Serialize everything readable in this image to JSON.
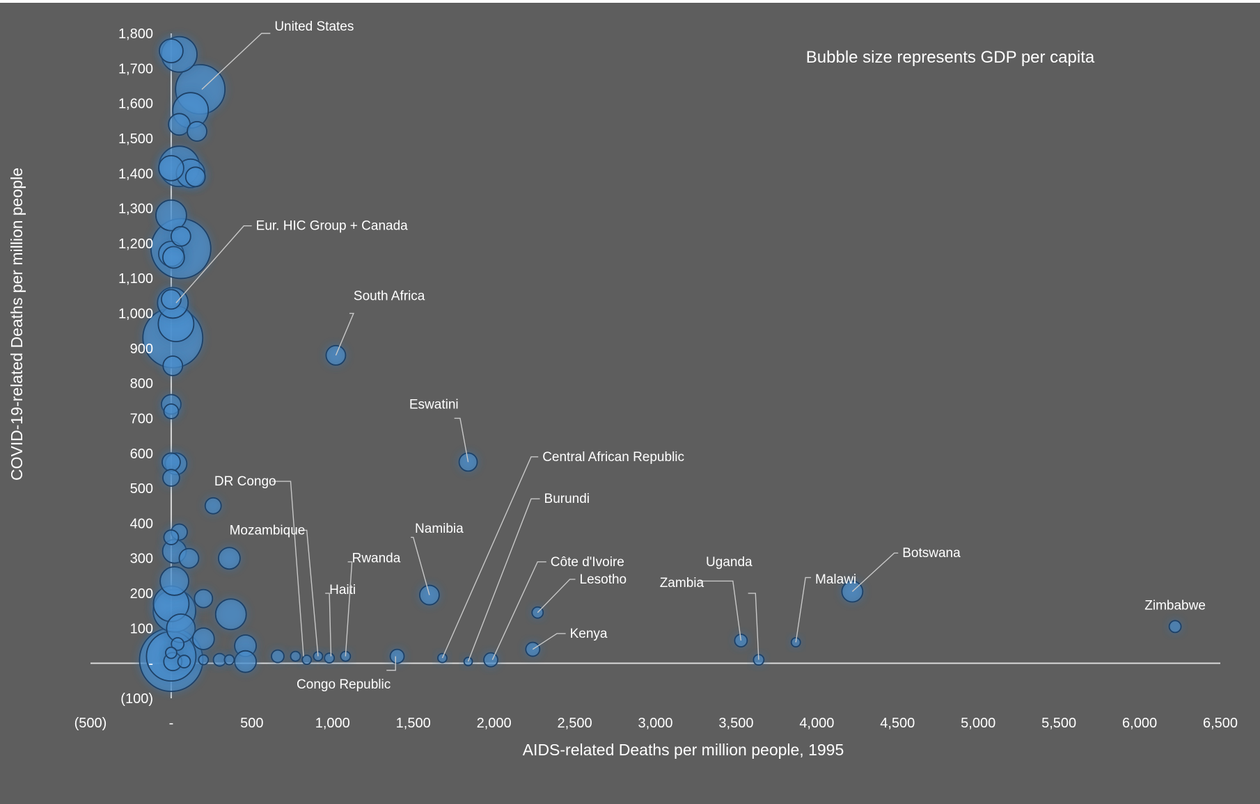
{
  "colors": {
    "background": "#5e5e5e",
    "bubble_fill": "#4a8fcf",
    "bubble_glow": "#3d9bff",
    "bubble_stroke": "#1f3f66",
    "text": "#ffffff",
    "axis": "#d9d9d9"
  },
  "note": "Bubble size represents GDP per capita",
  "chart_data": {
    "type": "bubble",
    "title": "",
    "xlabel": "AIDS-related Deaths per million people, 1995",
    "ylabel": "COVID-19-related Deaths per million people",
    "xlim": [
      -500,
      6500
    ],
    "ylim": [
      -100,
      1800
    ],
    "grid": false,
    "x_ticks": [
      {
        "value": -500,
        "label": "(500)"
      },
      {
        "value": 0,
        "label": "-"
      },
      {
        "value": 500,
        "label": "500"
      },
      {
        "value": 1000,
        "label": "1,000"
      },
      {
        "value": 1500,
        "label": "1,500"
      },
      {
        "value": 2000,
        "label": "2,000"
      },
      {
        "value": 2500,
        "label": "2,500"
      },
      {
        "value": 3000,
        "label": "3,000"
      },
      {
        "value": 3500,
        "label": "3,500"
      },
      {
        "value": 4000,
        "label": "4,000"
      },
      {
        "value": 4500,
        "label": "4,500"
      },
      {
        "value": 5000,
        "label": "5,000"
      },
      {
        "value": 5500,
        "label": "5,500"
      },
      {
        "value": 6000,
        "label": "6,000"
      },
      {
        "value": 6500,
        "label": "6,500"
      }
    ],
    "y_ticks": [
      {
        "value": -100,
        "label": "(100)"
      },
      {
        "value": 0,
        "label": "-"
      },
      {
        "value": 100,
        "label": "100"
      },
      {
        "value": 200,
        "label": "200"
      },
      {
        "value": 300,
        "label": "300"
      },
      {
        "value": 400,
        "label": "400"
      },
      {
        "value": 500,
        "label": "500"
      },
      {
        "value": 600,
        "label": "600"
      },
      {
        "value": 700,
        "label": "700"
      },
      {
        "value": 800,
        "label": "800"
      },
      {
        "value": 900,
        "label": "900"
      },
      {
        "value": 1000,
        "label": "1,000"
      },
      {
        "value": 1100,
        "label": "1,100"
      },
      {
        "value": 1200,
        "label": "1,200"
      },
      {
        "value": 1300,
        "label": "1,300"
      },
      {
        "value": 1400,
        "label": "1,400"
      },
      {
        "value": 1500,
        "label": "1,500"
      },
      {
        "value": 1600,
        "label": "1,600"
      },
      {
        "value": 1700,
        "label": "1,700"
      },
      {
        "value": 1800,
        "label": "1,800"
      }
    ],
    "points": [
      {
        "x": 0,
        "y": 1750,
        "gdp": 28
      },
      {
        "x": 50,
        "y": 1740,
        "gdp": 45
      },
      {
        "x": 180,
        "y": 1640,
        "gdp": 65
      },
      {
        "x": 120,
        "y": 1580,
        "gdp": 45
      },
      {
        "x": 50,
        "y": 1540,
        "gdp": 25
      },
      {
        "x": 160,
        "y": 1520,
        "gdp": 22
      },
      {
        "x": 50,
        "y": 1420,
        "gdp": 52
      },
      {
        "x": 0,
        "y": 1415,
        "gdp": 30
      },
      {
        "x": 120,
        "y": 1400,
        "gdp": 35
      },
      {
        "x": 150,
        "y": 1390,
        "gdp": 22
      },
      {
        "x": 0,
        "y": 1280,
        "gdp": 38
      },
      {
        "x": 60,
        "y": 1220,
        "gdp": 22
      },
      {
        "x": 60,
        "y": 1185,
        "gdp": 80
      },
      {
        "x": 0,
        "y": 1170,
        "gdp": 30
      },
      {
        "x": 15,
        "y": 1160,
        "gdp": 25
      },
      {
        "x": 0,
        "y": 1040,
        "gdp": 22
      },
      {
        "x": 10,
        "y": 1030,
        "gdp": 38
      },
      {
        "x": 30,
        "y": 970,
        "gdp": 45
      },
      {
        "x": 10,
        "y": 930,
        "gdp": 80
      },
      {
        "x": 10,
        "y": 850,
        "gdp": 22
      },
      {
        "x": 0,
        "y": 740,
        "gdp": 22
      },
      {
        "x": 0,
        "y": 720,
        "gdp": 15
      },
      {
        "x": 0,
        "y": 575,
        "gdp": 20
      },
      {
        "x": 30,
        "y": 570,
        "gdp": 25
      },
      {
        "x": 0,
        "y": 530,
        "gdp": 18
      },
      {
        "x": 260,
        "y": 450,
        "gdp": 17
      },
      {
        "x": 50,
        "y": 375,
        "gdp": 17
      },
      {
        "x": 0,
        "y": 360,
        "gdp": 15
      },
      {
        "x": 20,
        "y": 320,
        "gdp": 28
      },
      {
        "x": 360,
        "y": 300,
        "gdp": 25
      },
      {
        "x": 110,
        "y": 300,
        "gdp": 22
      },
      {
        "x": 20,
        "y": 235,
        "gdp": 35
      },
      {
        "x": 200,
        "y": 185,
        "gdp": 20
      },
      {
        "x": 0,
        "y": 170,
        "gdp": 45
      },
      {
        "x": 20,
        "y": 150,
        "gdp": 55
      },
      {
        "x": 370,
        "y": 140,
        "gdp": 38
      },
      {
        "x": 60,
        "y": 100,
        "gdp": 35
      },
      {
        "x": 200,
        "y": 70,
        "gdp": 25
      },
      {
        "x": 40,
        "y": 55,
        "gdp": 12
      },
      {
        "x": 460,
        "y": 50,
        "gdp": 25
      },
      {
        "x": 0,
        "y": 20,
        "gdp": 65
      },
      {
        "x": 0,
        "y": 10,
        "gdp": 85
      },
      {
        "x": 460,
        "y": 5,
        "gdp": 25
      },
      {
        "x": 10,
        "y": 5,
        "gdp": 20
      },
      {
        "x": 0,
        "y": 30,
        "gdp": 10
      },
      {
        "x": 80,
        "y": 5,
        "gdp": 12
      },
      {
        "x": 200,
        "y": 10,
        "gdp": 8
      },
      {
        "x": 300,
        "y": 10,
        "gdp": 12
      },
      {
        "x": 360,
        "y": 10,
        "gdp": 8
      },
      {
        "name": "DR Congo",
        "x": 770,
        "y": 20,
        "gdp": 8
      },
      {
        "x": 660,
        "y": 20,
        "gdp": 12
      },
      {
        "x": 840,
        "y": 10,
        "gdp": 7
      },
      {
        "name": "Mozambique",
        "x": 910,
        "y": 20,
        "gdp": 7
      },
      {
        "name": "Haiti",
        "x": 980,
        "y": 15,
        "gdp": 8
      },
      {
        "name": "Rwanda",
        "x": 1080,
        "y": 20,
        "gdp": 8
      },
      {
        "name": "Congo Republic",
        "x": 1400,
        "y": 20,
        "gdp": 14
      },
      {
        "name": "South Africa",
        "x": 1020,
        "y": 880,
        "gdp": 22
      },
      {
        "name": "Eswatini",
        "x": 1840,
        "y": 575,
        "gdp": 20
      },
      {
        "name": "Namibia",
        "x": 1600,
        "y": 195,
        "gdp": 22
      },
      {
        "name": "Central African Republic",
        "x": 1680,
        "y": 15,
        "gdp": 7
      },
      {
        "name": "Burundi",
        "x": 1840,
        "y": 5,
        "gdp": 6
      },
      {
        "name": "Côte d'Ivoire",
        "x": 1980,
        "y": 10,
        "gdp": 14
      },
      {
        "name": "Lesotho",
        "x": 2270,
        "y": 145,
        "gdp": 10
      },
      {
        "name": "Kenya",
        "x": 2240,
        "y": 40,
        "gdp": 14
      },
      {
        "name": "Zambia",
        "x": 3530,
        "y": 65,
        "gdp": 12
      },
      {
        "name": "Uganda",
        "x": 3640,
        "y": 10,
        "gdp": 9
      },
      {
        "name": "Malawi",
        "x": 3870,
        "y": 60,
        "gdp": 7
      },
      {
        "name": "Botswana",
        "x": 4220,
        "y": 205,
        "gdp": 24
      },
      {
        "name": "Zimbabwe",
        "x": 6220,
        "y": 105,
        "gdp": 11
      }
    ],
    "callouts": [
      {
        "label": "United States",
        "anchor": [
          190,
          1640
        ],
        "elbow": [
          560,
          1800
        ],
        "text": [
          640,
          1820
        ]
      },
      {
        "label": "Eur. HIC Group + Canada",
        "anchor": [
          30,
          1030
        ],
        "elbow": [
          450,
          1250
        ],
        "text": [
          525,
          1250
        ]
      },
      {
        "label": "South Africa",
        "anchor": [
          1020,
          880
        ],
        "elbow": [
          1130,
          1000
        ],
        "text": [
          1130,
          1050
        ]
      },
      {
        "label": "Eswatini",
        "anchor": [
          1840,
          575
        ],
        "elbow": [
          1790,
          700
        ],
        "text": [
          1780,
          740
        ]
      },
      {
        "label": "DR Congo",
        "anchor": [
          820,
          20
        ],
        "elbow": [
          740,
          520
        ],
        "text": [
          650,
          520
        ]
      },
      {
        "label": "Mozambique",
        "anchor": [
          910,
          20
        ],
        "elbow": [
          840,
          380
        ],
        "text": [
          830,
          380
        ]
      },
      {
        "label": "Haiti",
        "anchor": [
          990,
          20
        ],
        "elbow": [
          980,
          200
        ],
        "text": [
          980,
          210
        ]
      },
      {
        "label": "Rwanda",
        "anchor": [
          1080,
          20
        ],
        "elbow": [
          1120,
          290
        ],
        "text": [
          1120,
          300
        ]
      },
      {
        "label": "Congo Republic",
        "anchor": [
          1390,
          20
        ],
        "elbow": [
          1390,
          -20
        ],
        "text": [
          1360,
          -60
        ]
      },
      {
        "label": "Namibia",
        "anchor": [
          1600,
          195
        ],
        "elbow": [
          1500,
          360
        ],
        "text": [
          1510,
          385
        ]
      },
      {
        "label": "Central African Republic",
        "anchor": [
          1680,
          15
        ],
        "elbow": [
          2230,
          590
        ],
        "text": [
          2300,
          590
        ]
      },
      {
        "label": "Burundi",
        "anchor": [
          1840,
          5
        ],
        "elbow": [
          2230,
          470
        ],
        "text": [
          2310,
          470
        ]
      },
      {
        "label": "Côte d'Ivoire",
        "anchor": [
          1990,
          10
        ],
        "elbow": [
          2270,
          290
        ],
        "text": [
          2350,
          290
        ]
      },
      {
        "label": "Lesotho",
        "anchor": [
          2270,
          145
        ],
        "elbow": [
          2470,
          240
        ],
        "text": [
          2530,
          240
        ]
      },
      {
        "label": "Kenya",
        "anchor": [
          2240,
          40
        ],
        "elbow": [
          2390,
          85
        ],
        "text": [
          2470,
          85
        ]
      },
      {
        "label": "Zambia",
        "anchor": [
          3530,
          65
        ],
        "elbow": [
          3480,
          235
        ],
        "text": [
          3300,
          230
        ]
      },
      {
        "label": "Uganda",
        "anchor": [
          3640,
          10
        ],
        "elbow": [
          3620,
          200
        ],
        "text": [
          3600,
          290
        ]
      },
      {
        "label": "Malawi",
        "anchor": [
          3870,
          60
        ],
        "elbow": [
          3930,
          245
        ],
        "text": [
          3990,
          240
        ]
      },
      {
        "label": "Botswana",
        "anchor": [
          4220,
          205
        ],
        "elbow": [
          4480,
          315
        ],
        "text": [
          4530,
          315
        ]
      },
      {
        "label": "Zimbabwe",
        "anchor": [
          6220,
          105
        ],
        "elbow": [
          6220,
          105
        ],
        "text": [
          6220,
          165
        ]
      }
    ]
  }
}
